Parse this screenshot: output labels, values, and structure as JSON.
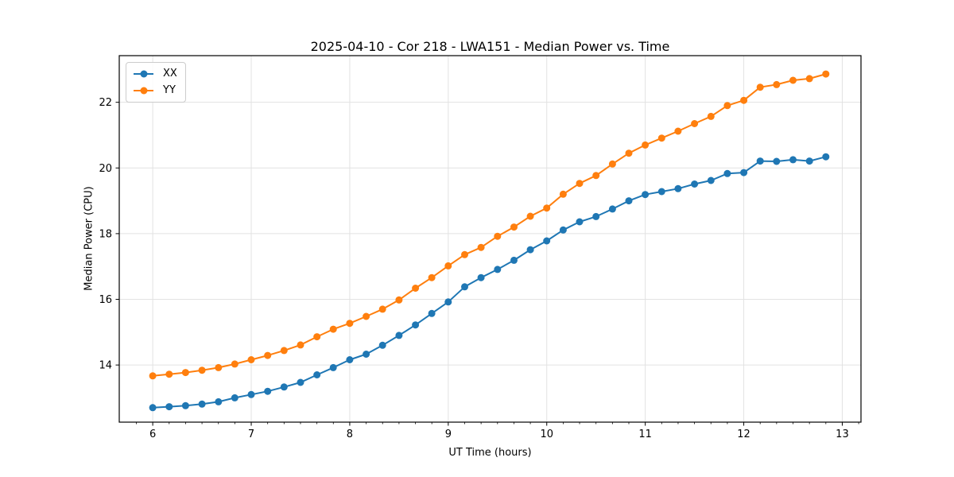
{
  "chart_data": {
    "type": "line",
    "title": "2025-04-10 - Cor 218 - LWA151 - Median Power vs. Time",
    "xlabel": "UT Time (hours)",
    "ylabel": "Median Power (CPU)",
    "grid": true,
    "legend_position": "upper left",
    "xlim": [
      5.66,
      13.19
    ],
    "ylim": [
      12.26,
      23.42
    ],
    "xticks": [
      6,
      7,
      8,
      9,
      10,
      11,
      12,
      13
    ],
    "yticks": [
      14,
      16,
      18,
      20,
      22
    ],
    "x_minor_tick_step": 0.1667,
    "background_color": "#ffffff",
    "grid_color": "#e2e2e2",
    "x": [
      6.0,
      6.167,
      6.333,
      6.5,
      6.667,
      6.833,
      7.0,
      7.167,
      7.333,
      7.5,
      7.667,
      7.833,
      8.0,
      8.167,
      8.333,
      8.5,
      8.667,
      8.833,
      9.0,
      9.167,
      9.333,
      9.5,
      9.667,
      9.833,
      10.0,
      10.167,
      10.333,
      10.5,
      10.667,
      10.833,
      11.0,
      11.167,
      11.333,
      11.5,
      11.667,
      11.833,
      12.0,
      12.167,
      12.333,
      12.5,
      12.667,
      12.833
    ],
    "series": [
      {
        "name": "XX",
        "color": "#1f77b4",
        "marker": "circle",
        "values": [
          12.7,
          12.73,
          12.76,
          12.81,
          12.88,
          13.0,
          13.1,
          13.2,
          13.33,
          13.47,
          13.7,
          13.92,
          14.16,
          14.33,
          14.6,
          14.9,
          15.22,
          15.57,
          15.92,
          16.38,
          16.66,
          16.91,
          17.19,
          17.51,
          17.78,
          18.11,
          18.36,
          18.52,
          18.75,
          19.0,
          19.19,
          19.28,
          19.37,
          19.51,
          19.62,
          19.83,
          19.86,
          20.21,
          20.2,
          20.25,
          20.21,
          20.34
        ]
      },
      {
        "name": "YY",
        "color": "#ff7f0e",
        "marker": "circle",
        "values": [
          13.67,
          13.72,
          13.77,
          13.84,
          13.92,
          14.03,
          14.16,
          14.29,
          14.44,
          14.61,
          14.86,
          15.09,
          15.27,
          15.48,
          15.7,
          15.98,
          16.34,
          16.66,
          17.02,
          17.36,
          17.58,
          17.92,
          18.2,
          18.53,
          18.78,
          19.2,
          19.53,
          19.77,
          20.12,
          20.45,
          20.7,
          20.91,
          21.12,
          21.35,
          21.57,
          21.9,
          22.06,
          22.46,
          22.54,
          22.67,
          22.72,
          22.86
        ]
      }
    ]
  }
}
